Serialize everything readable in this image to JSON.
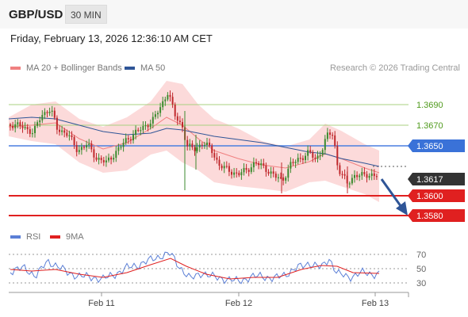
{
  "header": {
    "pair": "GBP/USD",
    "timeframe": "30 MIN"
  },
  "datetime": "Friday, February 13, 2026 12:36:10 AM CET",
  "legend": {
    "ma20": {
      "label": "MA 20 + Bollinger Bands",
      "color": "#f08080"
    },
    "ma50": {
      "label": "MA 50",
      "color": "#2f5597"
    }
  },
  "credit": "Research © 2026 Trading Central",
  "levels": [
    {
      "value": "1.3690",
      "style": "green"
    },
    {
      "value": "1.3670",
      "style": "green"
    },
    {
      "value": "1.3650",
      "style": "blue"
    },
    {
      "value": "1.3617",
      "style": "current"
    },
    {
      "value": "1.3600",
      "style": "red"
    },
    {
      "value": "1.3580",
      "style": "red"
    }
  ],
  "x_labels": [
    "Feb 11",
    "Feb 12",
    "Feb 13"
  ],
  "rsi": {
    "legend_rsi": "RSI",
    "legend_ma": "9MA",
    "rsi_color": "#5b7fd6",
    "ma_color": "#e02020",
    "levels": [
      "70",
      "50",
      "30"
    ]
  },
  "colors": {
    "up": "#3b8a2e",
    "down": "#c0282c",
    "band": "#fbd3d3"
  }
}
